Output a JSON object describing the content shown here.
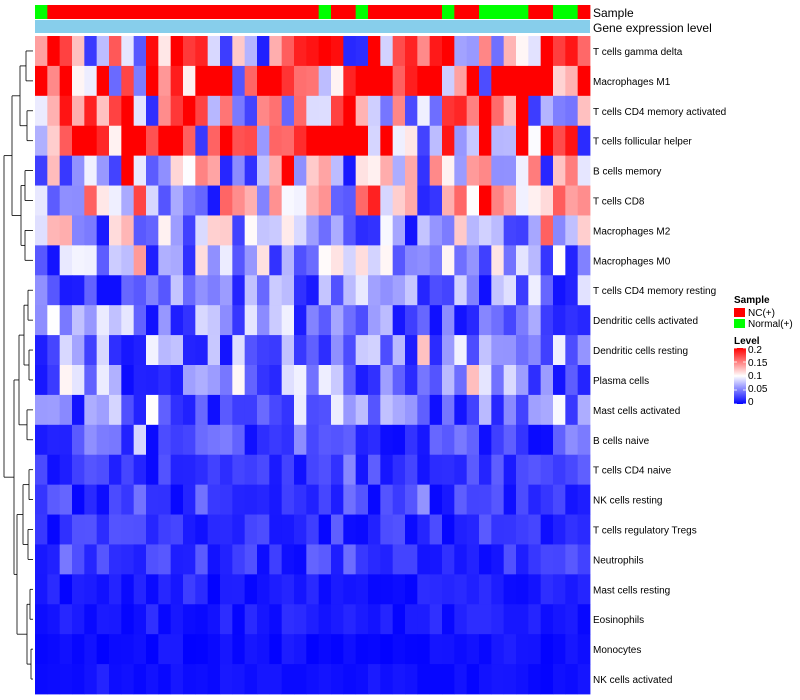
{
  "chart_data": {
    "type": "heatmap",
    "title": "",
    "annotation_tracks": [
      {
        "name": "Sample",
        "colors_by_column": "sample_groups"
      },
      {
        "name": "Gene expression level",
        "color": "#87ceeb"
      }
    ],
    "sample_groups": [
      1,
      0,
      0,
      0,
      0,
      0,
      0,
      0,
      0,
      0,
      0,
      0,
      0,
      0,
      0,
      0,
      0,
      0,
      0,
      0,
      0,
      0,
      0,
      1,
      0,
      0,
      1,
      0,
      0,
      0,
      0,
      0,
      0,
      1,
      0,
      0,
      1,
      1,
      1,
      1,
      0,
      0,
      1,
      1,
      0
    ],
    "rows": [
      "T cells gamma delta",
      "Macrophages M1",
      "T cells CD4 memory activated",
      "T cells follicular helper",
      "B cells memory",
      "T cells CD8",
      "Macrophages M2",
      "Macrophages M0",
      "T cells CD4 memory resting",
      "Dendritic cells activated",
      "Dendritic cells resting",
      "Plasma cells",
      "Mast cells activated",
      "B cells naive",
      "T cells CD4 naive",
      "NK cells resting",
      "T cells regulatory  Tregs",
      "Neutrophils",
      "Mast cells resting",
      "Eosinophils",
      "Monocytes",
      "NK cells activated"
    ],
    "n_columns": 45,
    "legend": {
      "sample": {
        "title": "Sample",
        "entries": [
          {
            "label": "NC(+)",
            "color": "#ff0000"
          },
          {
            "label": "Normal(+)",
            "color": "#00ff00"
          }
        ]
      },
      "level": {
        "title": "Level",
        "ticks": [
          "0.2",
          "0.15",
          "0.1",
          "0.05",
          "0"
        ],
        "tick_values": [
          0.2,
          0.15,
          0.1,
          0.05,
          0
        ],
        "range": [
          0,
          0.2
        ],
        "colors": [
          "#0000ff",
          "#ffffff",
          "#ff0000"
        ]
      }
    },
    "row_mean_level": [
      0.12,
      0.15,
      0.11,
      0.13,
      0.08,
      0.09,
      0.07,
      0.06,
      0.05,
      0.05,
      0.05,
      0.05,
      0.04,
      0.03,
      0.02,
      0.02,
      0.02,
      0.02,
      0.01,
      0.01,
      0.005,
      0.005
    ]
  }
}
